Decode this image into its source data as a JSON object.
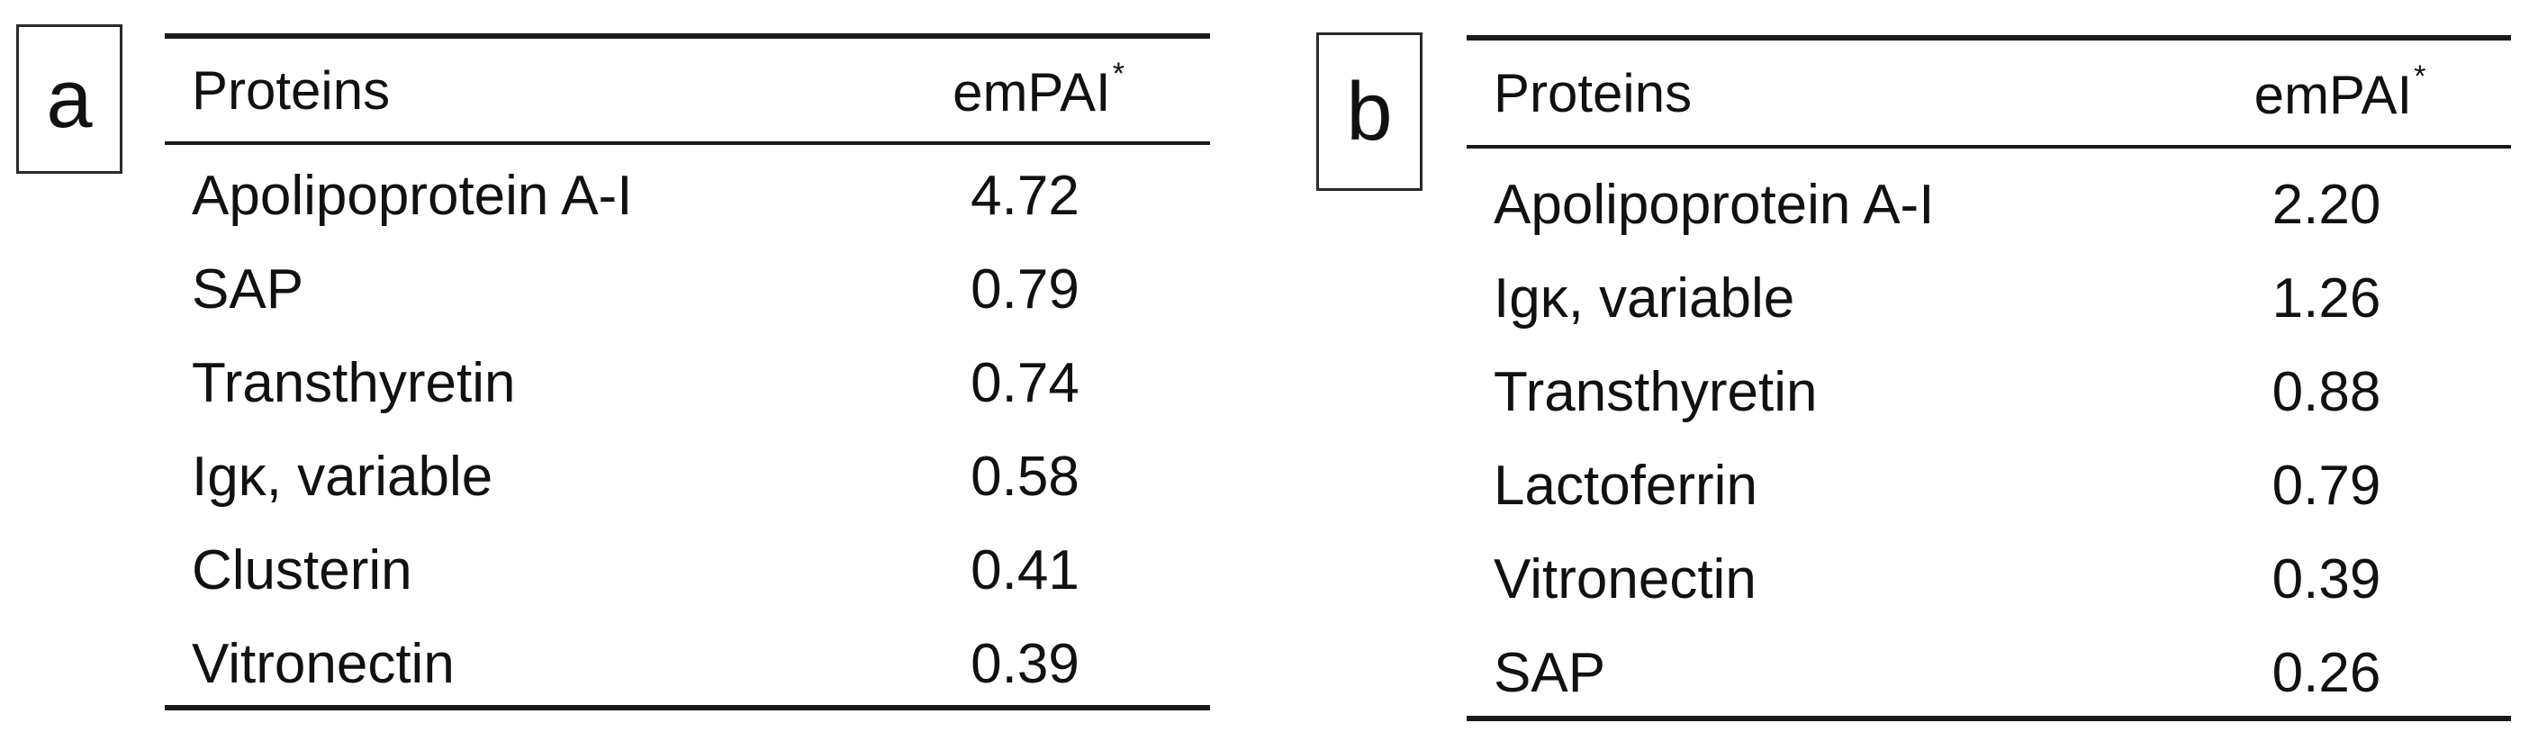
{
  "panels": [
    {
      "label": "a",
      "header": {
        "protein": "Proteins",
        "value": "emPAI",
        "value_marker": "*"
      },
      "rows": [
        {
          "protein": "Apolipoprotein A-I",
          "value": "4.72"
        },
        {
          "protein": "SAP",
          "value": "0.79"
        },
        {
          "protein": "Transthyretin",
          "value": "0.74"
        },
        {
          "protein": "Igκ, variable",
          "value": "0.58"
        },
        {
          "protein": "Clusterin",
          "value": "0.41"
        },
        {
          "protein": "Vitronectin",
          "value": "0.39"
        }
      ]
    },
    {
      "label": "b",
      "header": {
        "protein": "Proteins",
        "value": "emPAI",
        "value_marker": "*"
      },
      "rows": [
        {
          "protein": "Apolipoprotein A-I",
          "value": "2.20"
        },
        {
          "protein": "Igκ, variable",
          "value": "1.26"
        },
        {
          "protein": "Transthyretin",
          "value": "0.88"
        },
        {
          "protein": "Lactoferrin",
          "value": "0.79"
        },
        {
          "protein": "Vitronectin",
          "value": "0.39"
        },
        {
          "protein": "SAP",
          "value": "0.26"
        }
      ]
    }
  ]
}
